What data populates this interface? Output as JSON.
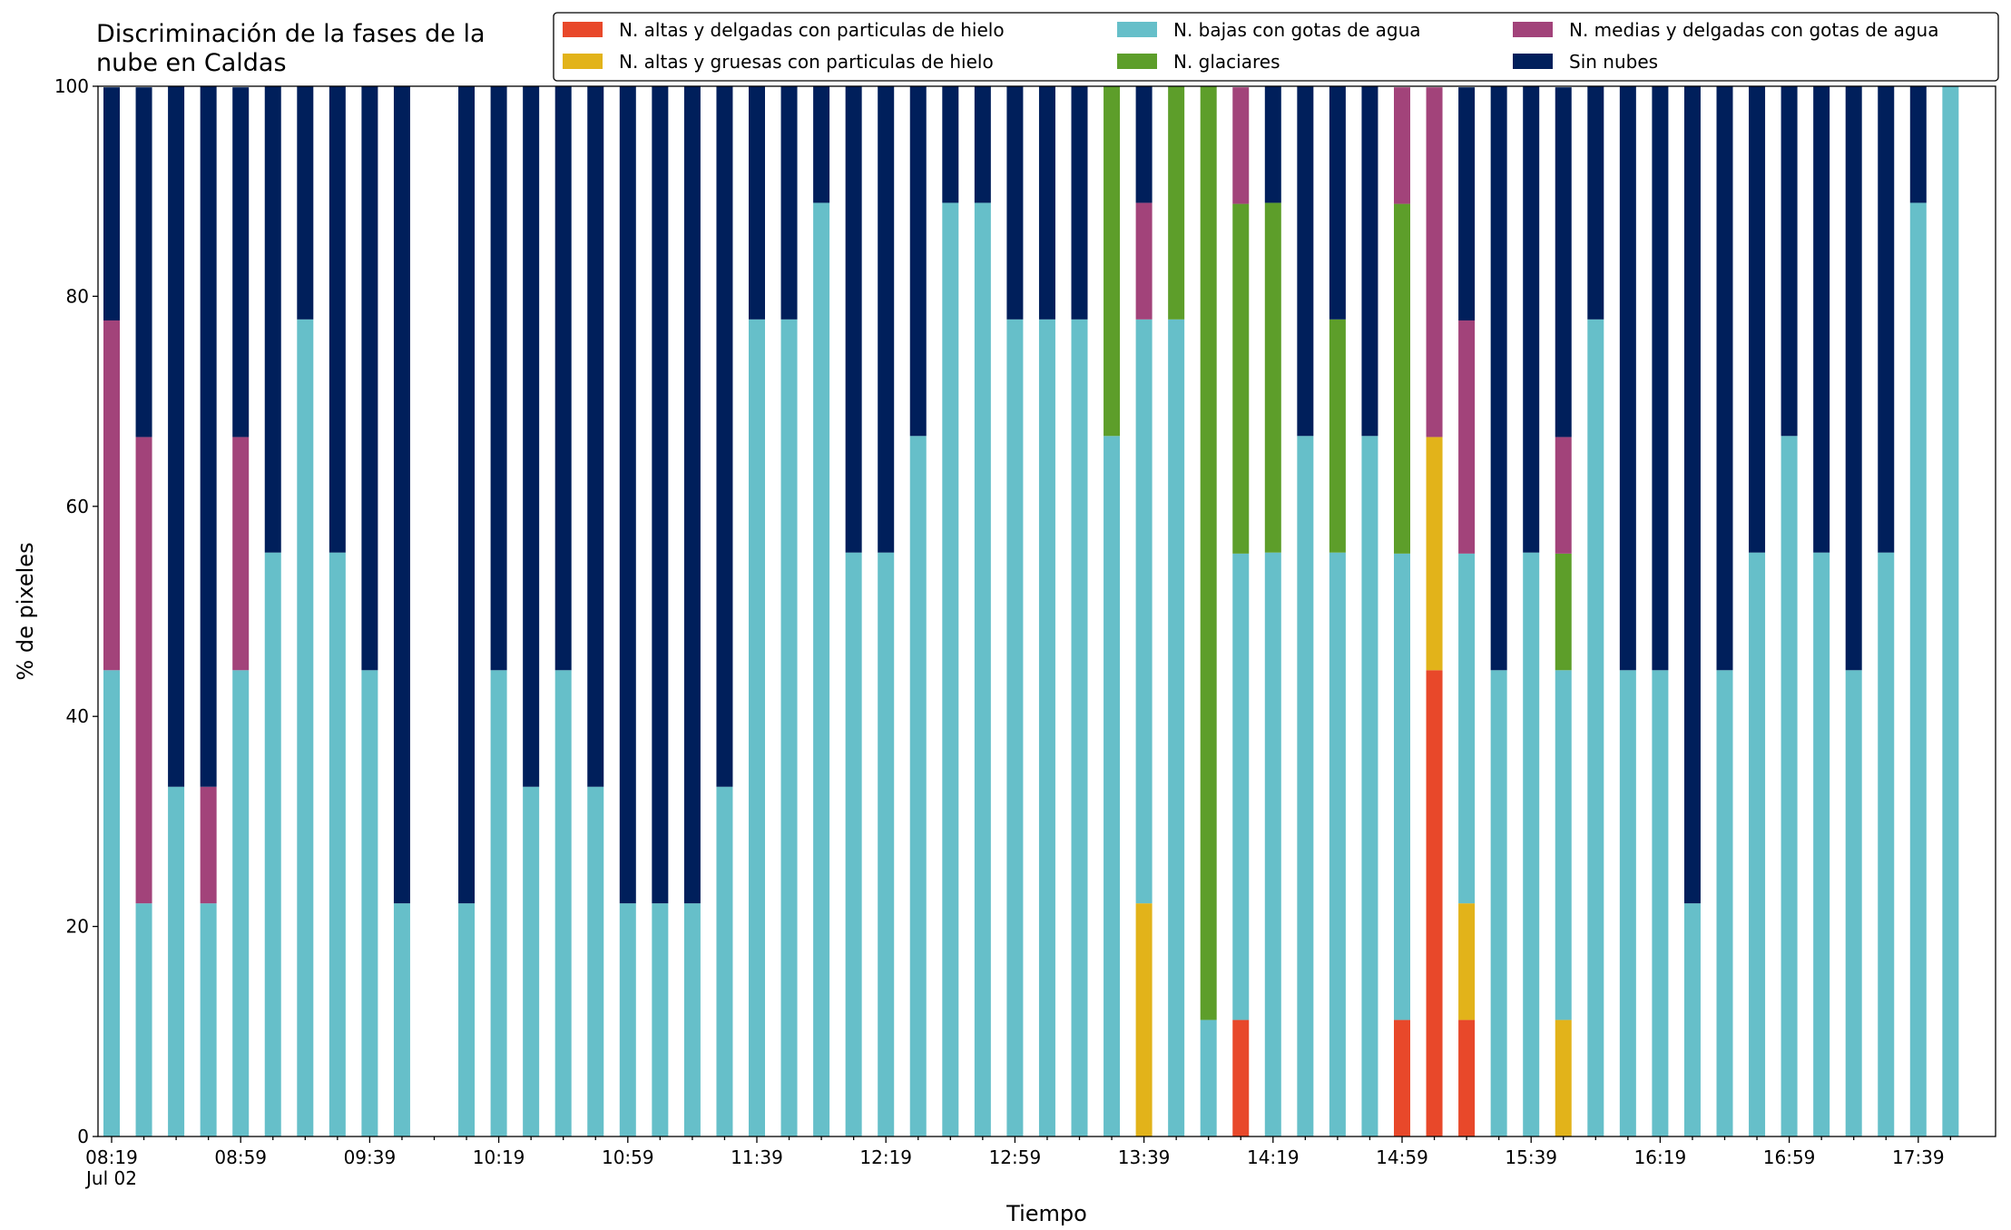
{
  "chart_data": {
    "type": "stacked_bar",
    "title": "Discriminación de la fases de la nube en Caldas",
    "x_label": "Tiempo",
    "y_label": "% de pixeles",
    "date_label": "Jul 02",
    "categories": [
      "08:19",
      null,
      null,
      null,
      "08:59",
      null,
      null,
      null,
      "09:39",
      null,
      null,
      null,
      "10:19",
      null,
      null,
      null,
      "10:59",
      null,
      null,
      null,
      "11:39",
      null,
      null,
      null,
      "12:19",
      null,
      null,
      null,
      "12:59",
      null,
      null,
      null,
      "13:39",
      null,
      null,
      null,
      "14:19",
      null,
      null,
      null,
      "14:59",
      null,
      null,
      null,
      "15:39",
      null,
      null,
      null,
      "16:19",
      null,
      null,
      null,
      "16:59",
      null,
      null,
      null,
      "17:39",
      null
    ],
    "ylim": [
      0,
      100
    ],
    "yticks": [
      0,
      20,
      40,
      60,
      80,
      100
    ],
    "series": [
      {
        "name": "N. altas y delgadas con particulas de hielo",
        "color": "#e8482a",
        "values": [
          0,
          0,
          0,
          0,
          0,
          0,
          0,
          0,
          0,
          0,
          null,
          0,
          0,
          0,
          0,
          0,
          0,
          0,
          0,
          0,
          0,
          0,
          0,
          0,
          0,
          0,
          0,
          0,
          0,
          0,
          0,
          0,
          0,
          0,
          0,
          11.1,
          0,
          0,
          0,
          0,
          11.1,
          44.4,
          11.1,
          0,
          0,
          0,
          0,
          0,
          0,
          0,
          0,
          0,
          0,
          0,
          0,
          0,
          0,
          0
        ]
      },
      {
        "name": "N. altas y gruesas con particulas de hielo",
        "color": "#e2b31a",
        "values": [
          0,
          0,
          0,
          0,
          0,
          0,
          0,
          0,
          0,
          0,
          null,
          0,
          0,
          0,
          0,
          0,
          0,
          0,
          0,
          0,
          0,
          0,
          0,
          0,
          0,
          0,
          0,
          0,
          0,
          0,
          0,
          0,
          22.2,
          0,
          0,
          0,
          0,
          0,
          0,
          0,
          0,
          22.2,
          11.1,
          0,
          0,
          11.1,
          0,
          0,
          0,
          0,
          0,
          0,
          0,
          0,
          0,
          0,
          0,
          0
        ]
      },
      {
        "name": "N. bajas con gotas de agua",
        "color": "#66bfc9",
        "values": [
          44.4,
          22.2,
          33.3,
          22.2,
          44.4,
          55.6,
          77.8,
          55.6,
          44.4,
          22.2,
          null,
          22.2,
          44.4,
          33.3,
          44.4,
          33.3,
          22.2,
          22.2,
          22.2,
          33.3,
          77.8,
          77.8,
          88.9,
          55.6,
          55.6,
          66.7,
          88.9,
          88.9,
          77.8,
          77.8,
          77.8,
          66.7,
          55.6,
          77.8,
          11.1,
          44.4,
          55.6,
          66.7,
          55.6,
          66.7,
          44.4,
          0,
          33.3,
          44.4,
          55.6,
          33.3,
          77.8,
          44.4,
          44.4,
          22.2,
          44.4,
          55.6,
          66.7,
          55.6,
          44.4,
          55.6,
          88.9,
          100
        ]
      },
      {
        "name": "N. glaciares",
        "color": "#5d9e2a",
        "values": [
          0,
          0,
          0,
          0,
          0,
          0,
          0,
          0,
          0,
          0,
          null,
          0,
          0,
          0,
          0,
          0,
          0,
          0,
          0,
          0,
          0,
          0,
          0,
          0,
          0,
          0,
          0,
          0,
          0,
          0,
          0,
          33.3,
          0,
          22.2,
          88.9,
          33.3,
          33.3,
          0,
          22.2,
          0,
          33.3,
          0,
          0,
          0,
          0,
          11.1,
          0,
          0,
          0,
          0,
          0,
          0,
          0,
          0,
          0,
          0,
          0,
          0
        ]
      },
      {
        "name": "N. medias y delgadas con gotas de agua",
        "color": "#a2437a",
        "values": [
          33.3,
          44.4,
          0,
          11.1,
          22.2,
          0,
          0,
          0,
          0,
          0,
          null,
          0,
          0,
          0,
          0,
          0,
          0,
          0,
          0,
          0,
          0,
          0,
          0,
          0,
          0,
          0,
          0,
          0,
          0,
          0,
          0,
          0,
          11.1,
          0,
          0,
          11.1,
          0,
          0,
          0,
          0,
          11.1,
          33.3,
          22.2,
          0,
          0,
          11.1,
          0,
          0,
          0,
          0,
          0,
          0,
          0,
          0,
          0,
          0,
          0,
          0
        ]
      },
      {
        "name": "Sin nubes",
        "color": "#001f5b",
        "values": [
          22.2,
          33.3,
          66.7,
          66.7,
          33.3,
          44.4,
          22.2,
          44.4,
          55.6,
          77.8,
          null,
          77.8,
          55.6,
          66.7,
          55.6,
          66.7,
          77.8,
          77.8,
          77.8,
          66.7,
          22.2,
          22.2,
          11.1,
          44.4,
          44.4,
          33.3,
          11.1,
          11.1,
          22.2,
          22.2,
          22.2,
          0,
          11.1,
          0,
          0,
          0,
          11.1,
          33.3,
          22.2,
          33.3,
          0,
          0,
          22.2,
          55.6,
          44.4,
          33.3,
          22.2,
          55.6,
          55.6,
          77.8,
          55.6,
          44.4,
          33.3,
          44.4,
          55.6,
          44.4,
          11.1,
          0
        ]
      }
    ]
  }
}
